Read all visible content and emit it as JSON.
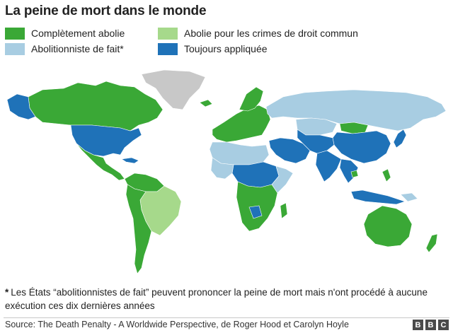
{
  "title": "La peine de mort dans le monde",
  "legend": [
    {
      "label": "Complètement abolie",
      "color": "#3aa836"
    },
    {
      "label": "Abolie pour les crimes de droit commun",
      "color": "#a6d98b"
    },
    {
      "label": "Abolitionniste de fait*",
      "color": "#a8cde2"
    },
    {
      "label": "Toujours appliquée",
      "color": "#1f72b8"
    }
  ],
  "no_data_color": "#c8c8c8",
  "footnote": {
    "marker": "*",
    "text": "Les États “abolitionnistes de fait” peuvent prononcer la peine de mort mais n'ont procédé à aucune exécution ces dix dernières années"
  },
  "source": "Source: The Death Penalty - A Worldwide Perspective, de Roger Hood et Carolyn Hoyle",
  "brand": [
    "B",
    "B",
    "C"
  ]
}
